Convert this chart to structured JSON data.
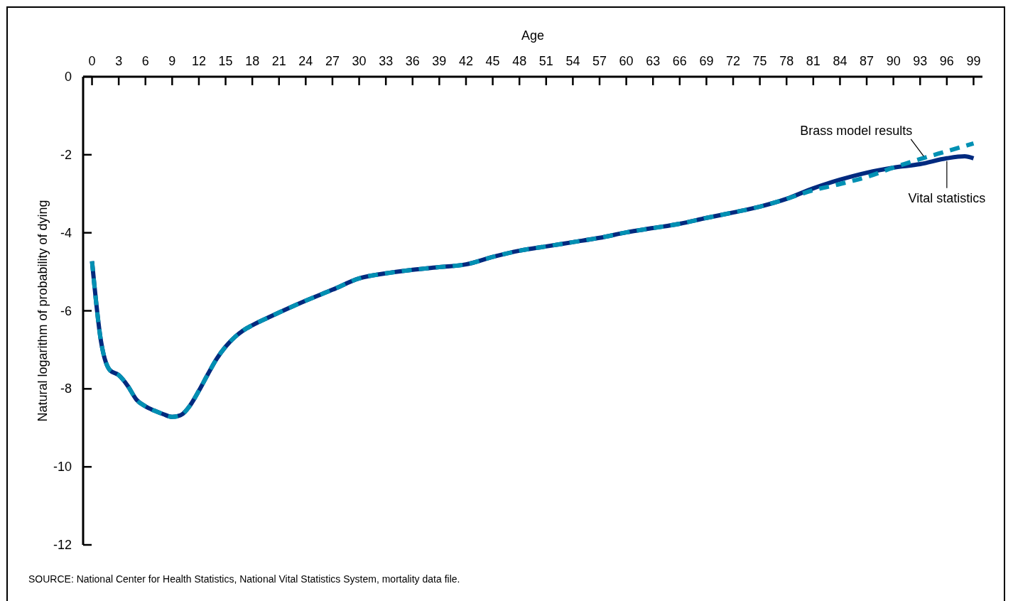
{
  "chart_data": {
    "type": "line",
    "xlabel": "Age",
    "ylabel": "Natural logarithm of probability of dying",
    "xlim": [
      -1,
      100
    ],
    "xticks": [
      0,
      3,
      6,
      9,
      12,
      15,
      18,
      21,
      24,
      27,
      30,
      33,
      36,
      39,
      42,
      45,
      48,
      51,
      54,
      57,
      60,
      63,
      66,
      69,
      72,
      75,
      78,
      81,
      84,
      87,
      90,
      93,
      96,
      99
    ],
    "ylim": [
      -12,
      0
    ],
    "yticks": [
      0,
      -2,
      -4,
      -6,
      -8,
      -10,
      -12
    ],
    "series": [
      {
        "name": "Vital statistics",
        "color": "#002a7f",
        "line_style": "solid",
        "x": [
          0,
          1,
          2,
          3,
          4,
          5,
          6,
          7,
          8,
          9,
          10,
          11,
          12,
          13,
          14,
          15,
          16,
          17,
          18,
          20,
          22,
          24,
          27,
          30,
          33,
          36,
          39,
          42,
          45,
          48,
          51,
          54,
          57,
          60,
          63,
          66,
          69,
          72,
          75,
          78,
          81,
          84,
          87,
          90,
          93,
          96,
          98,
          99
        ],
        "values": [
          -4.73,
          -6.77,
          -7.52,
          -7.65,
          -7.92,
          -8.28,
          -8.45,
          -8.56,
          -8.65,
          -8.72,
          -8.67,
          -8.43,
          -8.05,
          -7.63,
          -7.23,
          -6.92,
          -6.68,
          -6.5,
          -6.37,
          -6.15,
          -5.94,
          -5.74,
          -5.46,
          -5.17,
          -5.04,
          -4.95,
          -4.88,
          -4.81,
          -4.62,
          -4.46,
          -4.35,
          -4.24,
          -4.13,
          -3.99,
          -3.88,
          -3.77,
          -3.62,
          -3.48,
          -3.33,
          -3.13,
          -2.86,
          -2.64,
          -2.46,
          -2.33,
          -2.24,
          -2.09,
          -2.04,
          -2.09
        ]
      },
      {
        "name": "Brass model results",
        "color": "#0090b3",
        "line_style": "dashed",
        "x": [
          0,
          1,
          2,
          3,
          4,
          5,
          6,
          7,
          8,
          9,
          10,
          11,
          12,
          13,
          14,
          15,
          16,
          17,
          18,
          20,
          22,
          24,
          27,
          30,
          33,
          36,
          39,
          42,
          45,
          48,
          51,
          54,
          57,
          60,
          63,
          66,
          69,
          72,
          75,
          78,
          81,
          84,
          87,
          90,
          93,
          96,
          99
        ],
        "values": [
          -4.73,
          -6.77,
          -7.52,
          -7.65,
          -7.92,
          -8.28,
          -8.45,
          -8.56,
          -8.65,
          -8.72,
          -8.67,
          -8.43,
          -8.05,
          -7.63,
          -7.23,
          -6.92,
          -6.68,
          -6.5,
          -6.37,
          -6.15,
          -5.94,
          -5.74,
          -5.46,
          -5.17,
          -5.04,
          -4.95,
          -4.88,
          -4.81,
          -4.62,
          -4.46,
          -4.35,
          -4.24,
          -4.13,
          -3.99,
          -3.88,
          -3.77,
          -3.62,
          -3.48,
          -3.33,
          -3.13,
          -2.91,
          -2.75,
          -2.57,
          -2.33,
          -2.11,
          -1.91,
          -1.71
        ]
      }
    ],
    "annotations": [
      "SOURCE: National Center for Health Statistics, National Vital Statistics System, mortality data file."
    ]
  }
}
